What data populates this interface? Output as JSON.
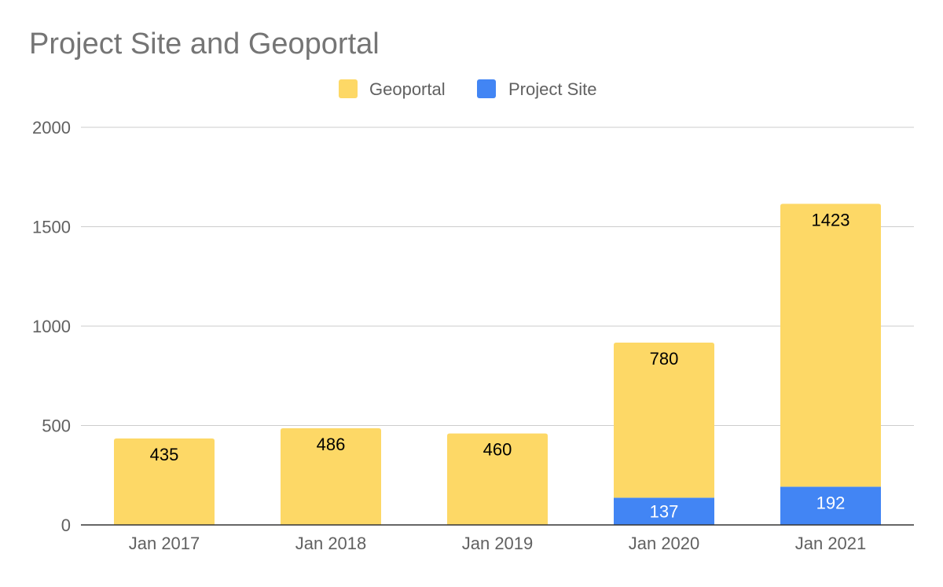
{
  "chart_data": {
    "type": "bar",
    "stacked": true,
    "title": "Project Site and Geoportal",
    "xlabel": "",
    "ylabel": "",
    "categories": [
      "Jan 2017",
      "Jan 2018",
      "Jan 2019",
      "Jan 2020",
      "Jan 2021"
    ],
    "series": [
      {
        "name": "Project Site",
        "color": "#4285f4",
        "values": [
          0,
          0,
          0,
          137,
          192
        ],
        "label_color": "#ffffff"
      },
      {
        "name": "Geoportal",
        "color": "#fdd866",
        "values": [
          435,
          486,
          460,
          780,
          1423
        ],
        "label_color": "#000000"
      }
    ],
    "legend_order": [
      "Geoportal",
      "Project Site"
    ],
    "legend_position": "top",
    "ylim": [
      0,
      2000
    ],
    "yticks": [
      0,
      500,
      1000,
      1500,
      2000
    ],
    "grid": true
  }
}
